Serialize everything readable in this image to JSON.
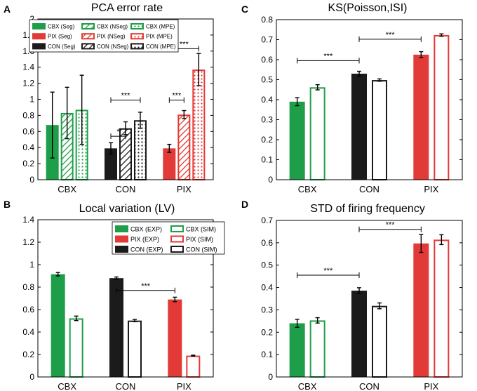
{
  "chart_data": [
    {
      "panel_id": "A",
      "type": "bar",
      "title": "PCA error rate",
      "xlabel": "",
      "ylabel": "",
      "ylim": [
        0,
        2
      ],
      "yticks": [
        0,
        0.2,
        0.4,
        0.6,
        0.8,
        1,
        1.2,
        1.4,
        1.6,
        1.8,
        2
      ],
      "ytick_labels": [
        "0",
        "0.2",
        "0.4",
        "0.6",
        "0.8",
        "1",
        "1.2",
        "1.4",
        "1.6",
        "1.8",
        "2"
      ],
      "categories": [
        "CBX",
        "CON",
        "PIX"
      ],
      "series": [
        {
          "name": "Seg",
          "fill": "solid",
          "values": [
            0.68,
            0.39,
            0.39
          ],
          "errors": [
            0.41,
            0.07,
            0.05
          ]
        },
        {
          "name": "NSeg",
          "fill": "hatch",
          "values": [
            0.83,
            0.64,
            0.81
          ],
          "errors": [
            0.32,
            0.08,
            0.05
          ]
        },
        {
          "name": "MPE",
          "fill": "dots",
          "values": [
            0.87,
            0.74,
            1.37
          ],
          "errors": [
            0.43,
            0.1,
            0.2
          ]
        }
      ],
      "legend": {
        "placement": "top",
        "rows": [
          [
            "CBX (Seg)",
            "CBX (NSeg)",
            "CBX (MPE)"
          ],
          [
            "PIX (Seg)",
            "PIX (NSeg)",
            "PIX (MPE)"
          ],
          [
            "CON (Seg)",
            "CON (NSeg)",
            "CON (MPE)"
          ]
        ]
      },
      "significance": [
        {
          "group": 1,
          "from": 0,
          "to": 1,
          "y": 0.54,
          "label": "*"
        },
        {
          "group": 1,
          "from": 0,
          "to": 2,
          "y": 0.99,
          "label": "***"
        },
        {
          "group": 2,
          "from": 0,
          "to": 1,
          "y": 0.99,
          "label": "***"
        },
        {
          "group": 2,
          "from": 0,
          "to": 2,
          "y": 1.63,
          "label": "***"
        }
      ]
    },
    {
      "panel_id": "C",
      "type": "bar",
      "title": "KS(Poisson,ISI)",
      "xlabel": "",
      "ylabel": "",
      "ylim": [
        0,
        0.8
      ],
      "yticks": [
        0,
        0.1,
        0.2,
        0.3,
        0.4,
        0.5,
        0.6,
        0.7,
        0.8
      ],
      "ytick_labels": [
        "0",
        "0.1",
        "0.2",
        "0.3",
        "0.4",
        "0.5",
        "0.6",
        "0.7",
        "0.8"
      ],
      "categories": [
        "CBX",
        "CON",
        "PIX"
      ],
      "series": [
        {
          "name": "EXP",
          "fill": "solid",
          "values": [
            0.39,
            0.53,
            0.625
          ],
          "errors": [
            0.02,
            0.012,
            0.015
          ]
        },
        {
          "name": "SIM",
          "fill": "outline",
          "values": [
            0.462,
            0.498,
            0.723
          ],
          "errors": [
            0.013,
            0.006,
            0.006
          ]
        }
      ],
      "significance": [
        {
          "from_group": 0,
          "to_group": 1,
          "y": 0.595,
          "label": "***"
        },
        {
          "from_group": 1,
          "to_group": 2,
          "y": 0.702,
          "label": "***"
        }
      ]
    },
    {
      "panel_id": "B",
      "type": "bar",
      "title": "Local variation (LV)",
      "xlabel": "",
      "ylabel": "",
      "ylim": [
        0,
        1.4
      ],
      "yticks": [
        0,
        0.2,
        0.4,
        0.6,
        0.8,
        1,
        1.2,
        1.4
      ],
      "ytick_labels": [
        "0",
        "0.2",
        "0.4",
        "0.6",
        "0.8",
        "1",
        "1.2",
        "1.4"
      ],
      "categories": [
        "CBX",
        "CON",
        "PIX"
      ],
      "series": [
        {
          "name": "EXP",
          "fill": "solid",
          "values": [
            0.915,
            0.88,
            0.69
          ],
          "errors": [
            0.015,
            0.01,
            0.02
          ]
        },
        {
          "name": "SIM",
          "fill": "outline",
          "values": [
            0.522,
            0.502,
            0.19
          ],
          "errors": [
            0.02,
            0.01,
            0.004
          ]
        }
      ],
      "legend": {
        "placement": "top-right",
        "rows": [
          [
            "CBX (EXP)",
            "CBX (SIM)"
          ],
          [
            "PIX (EXP)",
            "PIX (SIM)"
          ],
          [
            "CON (EXP)",
            "CON (SIM)"
          ]
        ]
      },
      "significance": [
        {
          "from_group": 1,
          "to_group": 2,
          "y": 0.77,
          "label": "***"
        }
      ]
    },
    {
      "panel_id": "D",
      "type": "bar",
      "title": "STD of firing frequency",
      "xlabel": "",
      "ylabel": "",
      "ylim": [
        0,
        0.7
      ],
      "yticks": [
        0,
        0.1,
        0.2,
        0.3,
        0.4,
        0.5,
        0.6,
        0.7
      ],
      "ytick_labels": [
        "0",
        "0.1",
        "0.2",
        "0.3",
        "0.4",
        "0.5",
        "0.6",
        "0.7"
      ],
      "categories": [
        "CBX",
        "CON",
        "PIX"
      ],
      "series": [
        {
          "name": "EXP",
          "fill": "solid",
          "values": [
            0.24,
            0.386,
            0.597
          ],
          "errors": [
            0.018,
            0.013,
            0.04
          ]
        },
        {
          "name": "SIM",
          "fill": "outline",
          "values": [
            0.253,
            0.318,
            0.614
          ],
          "errors": [
            0.012,
            0.013,
            0.022
          ]
        }
      ],
      "significance": [
        {
          "from_group": 0,
          "to_group": 1,
          "y": 0.455,
          "label": "***"
        },
        {
          "from_group": 1,
          "to_group": 2,
          "y": 0.66,
          "label": "***"
        }
      ]
    }
  ],
  "colors": {
    "CBX": "#1e9e48",
    "CON": "#1b1b1b",
    "PIX": "#e23a36",
    "axis": "#000000"
  }
}
